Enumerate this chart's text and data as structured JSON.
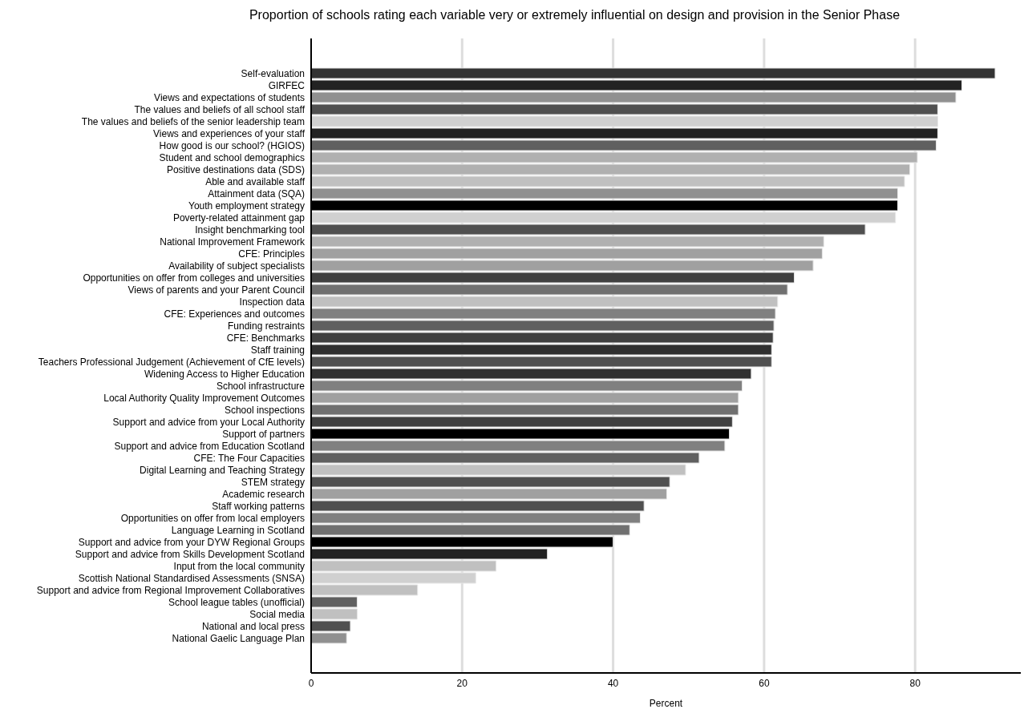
{
  "chart_data": {
    "type": "bar",
    "orientation": "horizontal",
    "title": "Proportion of schools rating each variable very or extremely influential on design and provision in the Senior Phase",
    "xlabel": "Percent",
    "categories": [
      "Self-evaluation",
      "GIRFEC",
      "Views and expectations of students",
      "The values and beliefs of all school staff",
      "The values and beliefs of the senior leadership team",
      "Views and experiences of your staff",
      "How good is our school? (HGIOS)",
      "Student and school demographics",
      "Positive destinations data (SDS)",
      "Able and available staff",
      "Attainment data (SQA)",
      "Youth employment strategy",
      "Poverty-related attainment gap",
      "Insight benchmarking tool",
      "National Improvement Framework",
      "CFE: Principles",
      "Availability of subject specialists",
      "Opportunities on offer from colleges and universities",
      "Views of parents and your Parent Council",
      "Inspection data",
      "CFE: Experiences and outcomes",
      "Funding restraints",
      "CFE: Benchmarks",
      "Staff training",
      "Teachers Professional Judgement (Achievement of CfE levels)",
      "Widening Access to Higher Education",
      "School infrastructure",
      "Local Authority Quality Improvement Outcomes",
      "School inspections",
      "Support and advice from your Local Authority",
      "Support of partners",
      "Support and advice from Education Scotland",
      "CFE: The Four Capacities",
      "Digital Learning and Teaching Strategy",
      "STEM strategy",
      "Academic research",
      "Staff working patterns",
      "Opportunities on offer from local employers",
      "Language Learning in Scotland",
      "Support and advice from your DYW Regional Groups",
      "Support and advice from Skills Development Scotland",
      "Input from the local community",
      "Scottish National Standardised Assessments (SNSA)",
      "Support and advice from Regional Improvement Collaboratives",
      "School league tables (unofficial)",
      "Social media",
      "National and local press",
      "National Gaelic Language Plan"
    ],
    "values": [
      90.6,
      86.2,
      85.4,
      83.0,
      83.0,
      83.0,
      82.8,
      80.3,
      79.3,
      78.6,
      77.7,
      77.7,
      77.4,
      73.4,
      67.9,
      67.7,
      66.5,
      64.0,
      63.1,
      61.8,
      61.5,
      61.3,
      61.2,
      61.0,
      61.0,
      58.3,
      57.1,
      56.6,
      56.6,
      55.8,
      55.4,
      54.8,
      51.4,
      49.6,
      47.5,
      47.1,
      44.1,
      43.6,
      42.2,
      40.0,
      31.3,
      24.5,
      21.8,
      14.1,
      6.1,
      6.1,
      5.2,
      4.7
    ],
    "colors": [
      "#333333",
      "#222222",
      "#909090",
      "#505050",
      "#d0d0d0",
      "#222222",
      "#606060",
      "#b0b0b0",
      "#b0b0b0",
      "#c0c0c0",
      "#909090",
      "#000000",
      "#d0d0d0",
      "#505050",
      "#b0b0b0",
      "#a0a0a0",
      "#a0a0a0",
      "#404040",
      "#707070",
      "#c0c0c0",
      "#808080",
      "#606060",
      "#404040",
      "#303030",
      "#505050",
      "#303030",
      "#808080",
      "#a0a0a0",
      "#707070",
      "#404040",
      "#000000",
      "#808080",
      "#606060",
      "#c0c0c0",
      "#505050",
      "#a0a0a0",
      "#505050",
      "#808080",
      "#707070",
      "#000000",
      "#222222",
      "#c0c0c0",
      "#d0d0d0",
      "#c0c0c0",
      "#606060",
      "#c0c0c0",
      "#505050",
      "#909090"
    ],
    "xlim": [
      0,
      94
    ],
    "xticks": [
      0,
      20,
      40,
      60,
      80
    ],
    "grid": "x"
  }
}
